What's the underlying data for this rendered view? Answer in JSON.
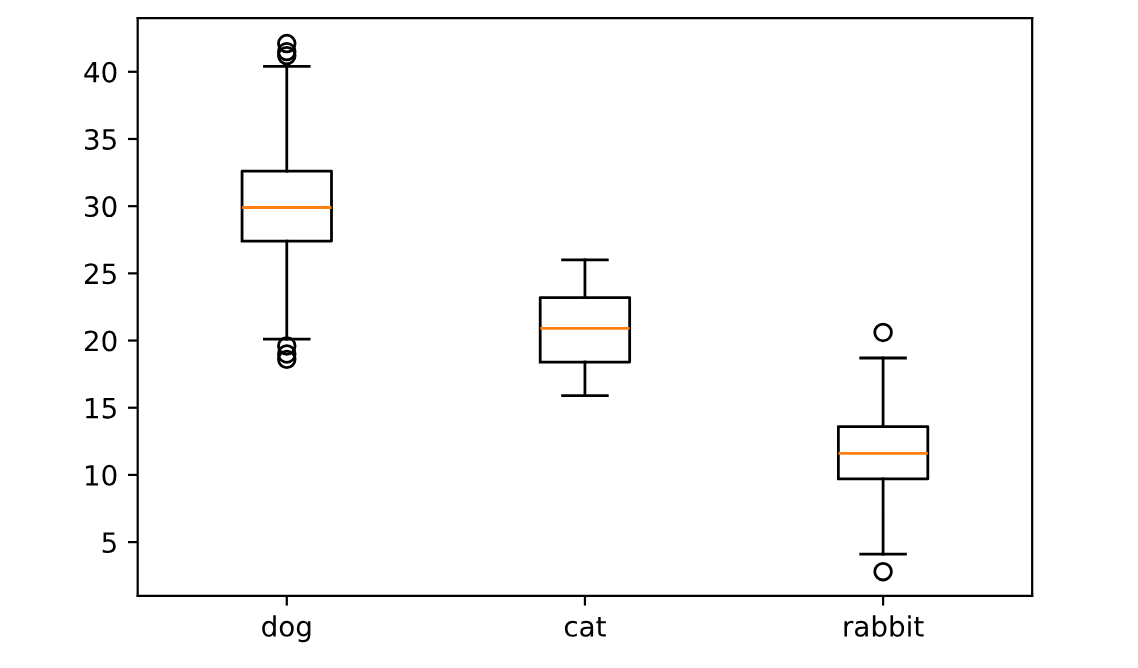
{
  "chart_data": {
    "type": "box",
    "categories": [
      "dog",
      "cat",
      "rabbit"
    ],
    "boxes": [
      {
        "low": 20.1,
        "q1": 27.4,
        "median": 29.9,
        "q3": 32.6,
        "high": 40.4,
        "outliers": [
          42.1,
          41.5,
          41.2,
          19.6,
          19.0,
          18.6
        ]
      },
      {
        "low": 15.9,
        "q1": 18.4,
        "median": 20.9,
        "q3": 23.2,
        "high": 26.0
      },
      {
        "low": 4.1,
        "q1": 9.7,
        "median": 11.6,
        "q3": 13.6,
        "high": 18.7,
        "outliers": [
          20.6,
          2.8
        ]
      }
    ],
    "ylim": [
      1,
      44
    ],
    "yticks": [
      5,
      10,
      15,
      20,
      25,
      30,
      35,
      40
    ],
    "grid": false
  }
}
